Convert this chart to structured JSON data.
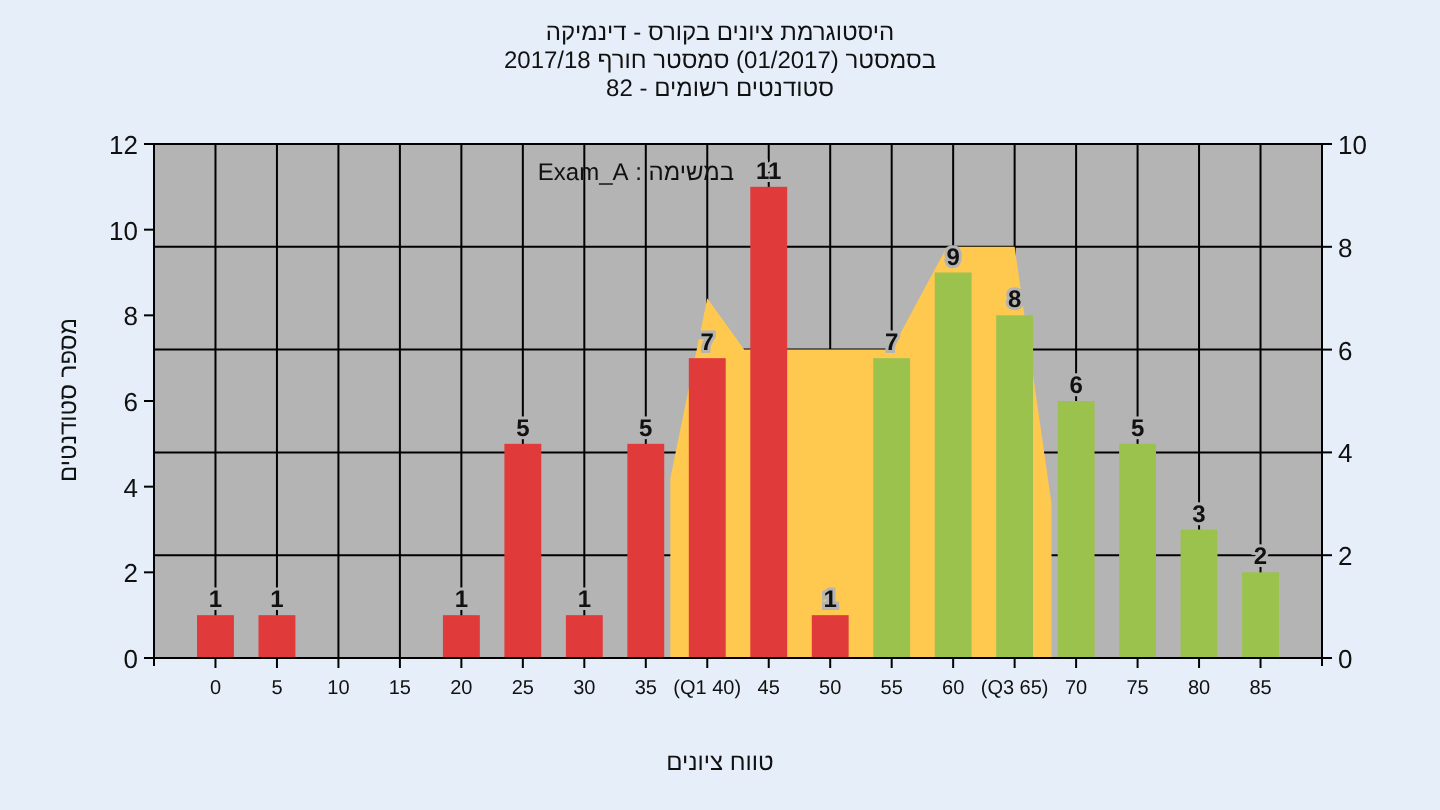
{
  "chart_data": {
    "type": "bar",
    "title": "היסטוגרמת ציונים בקורס - דינמיקה",
    "subtitle": "בסמסטר (01/2017) סמסטר חורף 2017/18",
    "annotations": [
      "סטודנטים רשומים - 82",
      "במשימה : Exam_A"
    ],
    "xlabel": "טווח ציונים",
    "ylabel": "מספר סטודנטים",
    "x": [
      0,
      5,
      10,
      15,
      20,
      25,
      30,
      35,
      40,
      45,
      50,
      55,
      60,
      65,
      70,
      75,
      80,
      85
    ],
    "xlim": [
      -5,
      90
    ],
    "xticks": [
      0,
      5,
      10,
      15,
      20,
      25,
      30,
      35,
      {
        "value": 40,
        "label": "(Q1 40)"
      },
      45,
      50,
      55,
      60,
      {
        "value": 65,
        "label": "(Q3 65)"
      },
      70,
      75,
      80,
      85
    ],
    "ylim": [
      0,
      12
    ],
    "yticks": [
      0,
      2,
      4,
      6,
      8,
      10,
      12
    ],
    "y2lim": [
      0,
      10
    ],
    "y2ticks": [
      0,
      2,
      4,
      6,
      8,
      10
    ],
    "grid": true,
    "series": [
      {
        "type": "area",
        "axis": "y2",
        "color": "#ffc94f",
        "x": [
          37,
          37,
          40,
          43,
          55,
          59.5,
          65,
          68,
          68
        ],
        "values": [
          0,
          3.5,
          7,
          6,
          6,
          8,
          8,
          3,
          0
        ]
      },
      {
        "colors": [
          "#e03a3a",
          "#e03a3a",
          "#e03a3a",
          "#e03a3a",
          "#e03a3a",
          "#e03a3a",
          "#e03a3a",
          "#e03a3a",
          "#e03a3a",
          "#e03a3a",
          "#e03a3a",
          "#9cc24e",
          "#9cc24e",
          "#9cc24e",
          "#9cc24e",
          "#9cc24e",
          "#9cc24e",
          "#9cc24e"
        ],
        "values": [
          1,
          1,
          0,
          0,
          1,
          5,
          1,
          5,
          7,
          11,
          1,
          7,
          9,
          8,
          6,
          5,
          3,
          2
        ],
        "value_labels": [
          "1",
          "1",
          null,
          null,
          "1",
          "5",
          "1",
          "5",
          "7",
          "11",
          "1",
          "7",
          "9",
          "8",
          "6",
          "5",
          "3",
          "2"
        ]
      }
    ]
  }
}
